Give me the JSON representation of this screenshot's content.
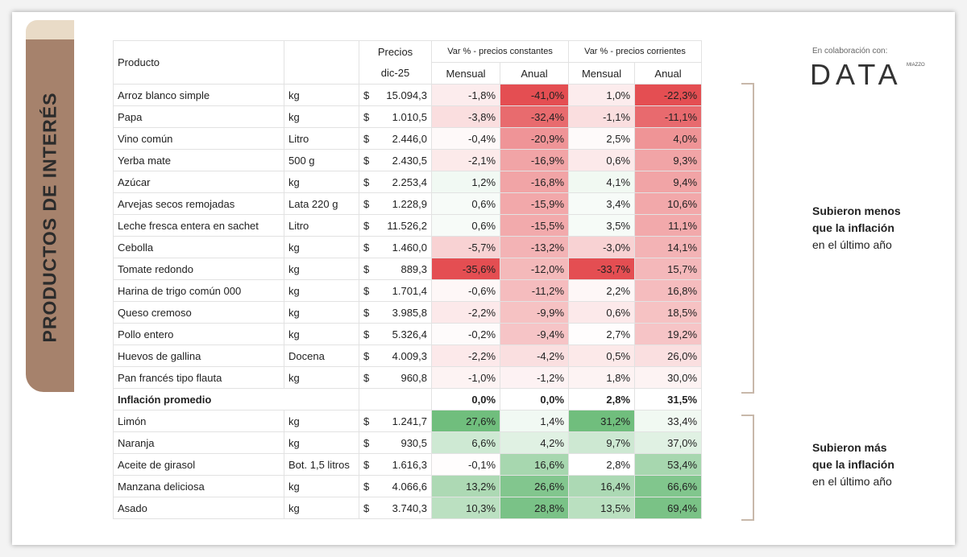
{
  "sidebar": {
    "title": "PRODUCTOS DE INTERÉS"
  },
  "brand": {
    "collab": "En colaboración con:",
    "name": "DATA",
    "sub": "MIAZZO"
  },
  "table": {
    "header": {
      "product": "Producto",
      "price_top": "Precios",
      "price_bottom": "dic-25",
      "group_constant": "Var % - precios constantes",
      "group_current": "Var % - precios corrientes",
      "monthly": "Mensual",
      "annual": "Anual"
    },
    "groups": [
      {
        "note": [
          "Subieron menos",
          "que la inflación",
          "en el último año"
        ],
        "rows": [
          [
            "Arroz blanco simple",
            "kg",
            "$",
            "15.094,3",
            "-1,8%",
            "-41,0%",
            "1,0%",
            "-22,3%"
          ],
          [
            "Papa",
            "kg",
            "$",
            "1.010,5",
            "-3,8%",
            "-32,4%",
            "-1,1%",
            "-11,1%"
          ],
          [
            "Vino común",
            "Litro",
            "$",
            "2.446,0",
            "-0,4%",
            "-20,9%",
            "2,5%",
            "4,0%"
          ],
          [
            "Yerba mate",
            "500 g",
            "$",
            "2.430,5",
            "-2,1%",
            "-16,9%",
            "0,6%",
            "9,3%"
          ],
          [
            "Azúcar",
            "kg",
            "$",
            "2.253,4",
            "1,2%",
            "-16,8%",
            "4,1%",
            "9,4%"
          ],
          [
            "Arvejas secos remojadas",
            "Lata 220 g",
            "$",
            "1.228,9",
            "0,6%",
            "-15,9%",
            "3,4%",
            "10,6%"
          ],
          [
            "Leche fresca entera en sachet",
            "Litro",
            "$",
            "11.526,2",
            "0,6%",
            "-15,5%",
            "3,5%",
            "11,1%"
          ],
          [
            "Cebolla",
            "kg",
            "$",
            "1.460,0",
            "-5,7%",
            "-13,2%",
            "-3,0%",
            "14,1%"
          ],
          [
            "Tomate redondo",
            "kg",
            "$",
            "889,3",
            "-35,6%",
            "-12,0%",
            "-33,7%",
            "15,7%"
          ],
          [
            "Harina de trigo común 000",
            "kg",
            "$",
            "1.701,4",
            "-0,6%",
            "-11,2%",
            "2,2%",
            "16,8%"
          ],
          [
            "Queso cremoso",
            "kg",
            "$",
            "3.985,8",
            "-2,2%",
            "-9,9%",
            "0,6%",
            "18,5%"
          ],
          [
            "Pollo entero",
            "kg",
            "$",
            "5.326,4",
            "-0,2%",
            "-9,4%",
            "2,7%",
            "19,2%"
          ],
          [
            "Huevos de gallina",
            "Docena",
            "$",
            "4.009,3",
            "-2,2%",
            "-4,2%",
            "0,5%",
            "26,0%"
          ],
          [
            "Pan francés tipo flauta",
            "kg",
            "$",
            "960,8",
            "-1,0%",
            "-1,2%",
            "1,8%",
            "30,0%"
          ]
        ]
      },
      {
        "note": [
          "Subieron más",
          "que la inflación",
          "en el último año"
        ],
        "rows": [
          [
            "Limón",
            "kg",
            "$",
            "1.241,7",
            "27,6%",
            "1,4%",
            "31,2%",
            "33,4%"
          ],
          [
            "Naranja",
            "kg",
            "$",
            "930,5",
            "6,6%",
            "4,2%",
            "9,7%",
            "37,0%"
          ],
          [
            "Aceite de girasol",
            "Bot. 1,5 litros",
            "$",
            "1.616,3",
            "-0,1%",
            "16,6%",
            "2,8%",
            "53,4%"
          ],
          [
            "Manzana deliciosa",
            "kg",
            "$",
            "4.066,6",
            "13,2%",
            "26,6%",
            "16,4%",
            "66,6%"
          ],
          [
            "Asado",
            "kg",
            "$",
            "3.740,3",
            "10,3%",
            "28,8%",
            "13,5%",
            "69,4%"
          ]
        ]
      }
    ],
    "average": {
      "label": "Inflación promedio",
      "values": [
        "0,0%",
        "0,0%",
        "2,8%",
        "31,5%"
      ]
    }
  }
}
